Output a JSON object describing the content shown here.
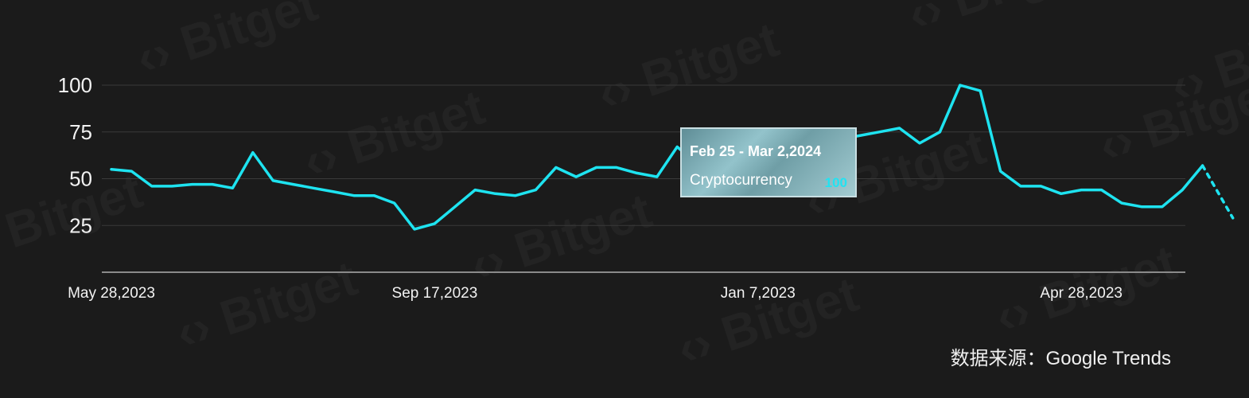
{
  "watermark": "Bitget",
  "source_note": "数据来源：Google Trends",
  "tooltip": {
    "title": "Feb 25 - Mar 2,2024",
    "series_name": "Cryptocurrency",
    "value": "100"
  },
  "chart_data": {
    "type": "line",
    "title": "",
    "xlabel": "",
    "ylabel": "",
    "ylim": [
      0,
      100
    ],
    "y_ticks": [
      25,
      50,
      75,
      100
    ],
    "x_tick_labels": [
      "May 28,2023",
      "Sep 17,2023",
      "Jan 7,2023",
      "Apr 28,2023"
    ],
    "x_tick_indices": [
      0,
      16,
      32,
      48
    ],
    "grid": true,
    "line_color": "#1ee3f0",
    "series": [
      {
        "values": [
          55,
          54,
          46,
          46,
          47,
          47,
          45,
          64,
          49,
          47,
          45,
          43,
          41,
          41,
          37,
          23,
          26,
          35,
          44,
          42,
          41,
          44,
          56,
          51,
          56,
          56,
          53,
          51,
          67,
          58,
          58,
          60,
          62,
          64,
          67,
          69,
          71,
          73,
          75,
          77,
          69,
          75,
          100,
          97,
          54,
          46,
          46,
          42,
          44,
          44,
          37,
          35,
          35,
          44,
          57
        ]
      }
    ],
    "projection": [
      57,
      29
    ]
  }
}
